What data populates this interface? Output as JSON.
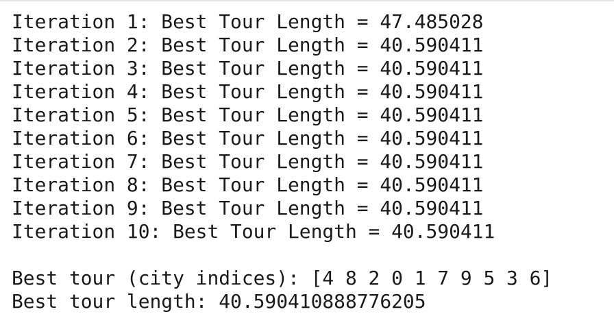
{
  "iterations": [
    "Iteration 1: Best Tour Length = 47.485028",
    "Iteration 2: Best Tour Length = 40.590411",
    "Iteration 3: Best Tour Length = 40.590411",
    "Iteration 4: Best Tour Length = 40.590411",
    "Iteration 5: Best Tour Length = 40.590411",
    "Iteration 6: Best Tour Length = 40.590411",
    "Iteration 7: Best Tour Length = 40.590411",
    "Iteration 8: Best Tour Length = 40.590411",
    "Iteration 9: Best Tour Length = 40.590411",
    "Iteration 10: Best Tour Length = 40.590411"
  ],
  "summary": [
    "Best tour (city indices): [4 8 2 0 1 7 9 5 3 6]",
    "Best tour length: 40.590410888776205"
  ]
}
